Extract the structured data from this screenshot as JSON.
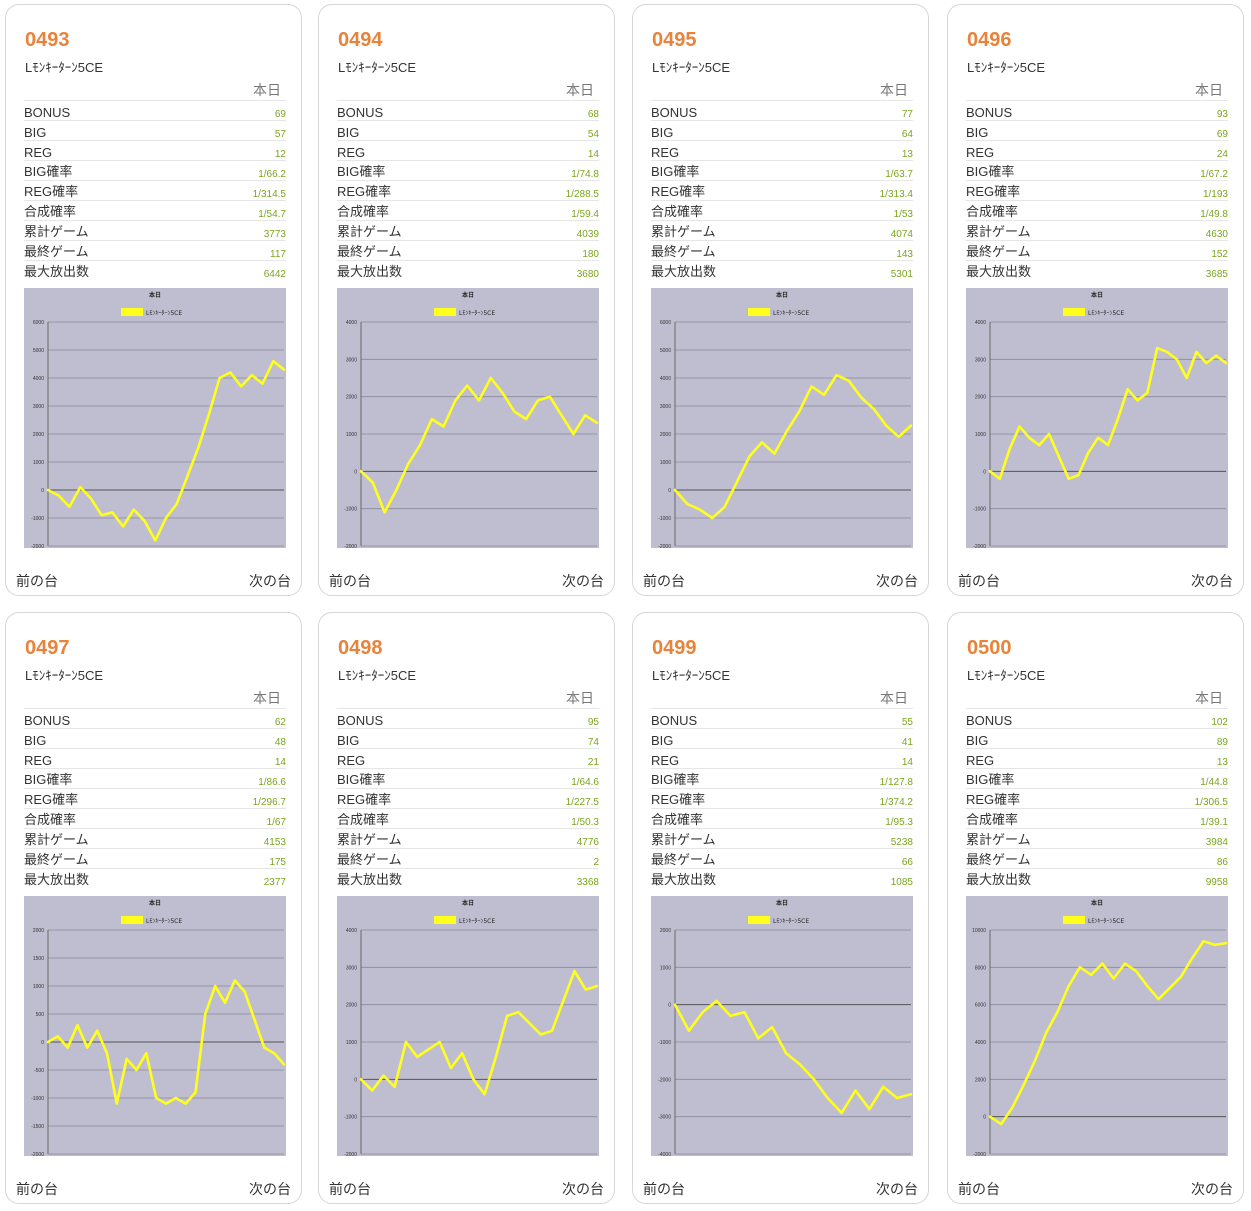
{
  "labels": {
    "today": "本日",
    "prev": "前の台",
    "next": "次の台",
    "rows": [
      "BONUS",
      "BIG",
      "REG",
      "BIG確率",
      "REG確率",
      "合成確率",
      "累計ゲーム",
      "最終ゲーム",
      "最大放出数"
    ]
  },
  "colors": {
    "number": "#e8833a",
    "value": "#7aa51e",
    "plot_bg": "#bfbdd0",
    "line": "#ffff1e"
  },
  "machines": [
    {
      "number": "0493",
      "model": "Lﾓﾝｷｰﾀｰﾝ5CE",
      "stats": [
        "69",
        "57",
        "12",
        "1/66.2",
        "1/314.5",
        "1/54.7",
        "3773",
        "117",
        "6442"
      ]
    },
    {
      "number": "0494",
      "model": "Lﾓﾝｷｰﾀｰﾝ5CE",
      "stats": [
        "68",
        "54",
        "14",
        "1/74.8",
        "1/288.5",
        "1/59.4",
        "4039",
        "180",
        "3680"
      ]
    },
    {
      "number": "0495",
      "model": "Lﾓﾝｷｰﾀｰﾝ5CE",
      "stats": [
        "77",
        "64",
        "13",
        "1/63.7",
        "1/313.4",
        "1/53",
        "4074",
        "143",
        "5301"
      ]
    },
    {
      "number": "0496",
      "model": "Lﾓﾝｷｰﾀｰﾝ5CE",
      "stats": [
        "93",
        "69",
        "24",
        "1/67.2",
        "1/193",
        "1/49.8",
        "4630",
        "152",
        "3685"
      ]
    },
    {
      "number": "0497",
      "model": "Lﾓﾝｷｰﾀｰﾝ5CE",
      "stats": [
        "62",
        "48",
        "14",
        "1/86.6",
        "1/296.7",
        "1/67",
        "4153",
        "175",
        "2377"
      ]
    },
    {
      "number": "0498",
      "model": "Lﾓﾝｷｰﾀｰﾝ5CE",
      "stats": [
        "95",
        "74",
        "21",
        "1/64.6",
        "1/227.5",
        "1/50.3",
        "4776",
        "2",
        "3368"
      ]
    },
    {
      "number": "0499",
      "model": "Lﾓﾝｷｰﾀｰﾝ5CE",
      "stats": [
        "55",
        "41",
        "14",
        "1/127.8",
        "1/374.2",
        "1/95.3",
        "5238",
        "66",
        "1085"
      ]
    },
    {
      "number": "0500",
      "model": "Lﾓﾝｷｰﾀｰﾝ5CE",
      "stats": [
        "102",
        "89",
        "13",
        "1/44.8",
        "1/306.5",
        "1/39.1",
        "3984",
        "86",
        "9958"
      ]
    }
  ],
  "chart_data": [
    {
      "type": "line",
      "title": "本日",
      "series": [
        {
          "name": "Lﾓﾝｷｰﾀｰﾝ5CE",
          "values": [
            0,
            -200,
            -600,
            100,
            -300,
            -900,
            -800,
            -1300,
            -700,
            -1100,
            -1800,
            -1000,
            -500,
            500,
            1500,
            2700,
            4000,
            4200,
            3700,
            4100,
            3800,
            4600,
            4300
          ]
        }
      ],
      "ylim": [
        -2000,
        6000
      ],
      "yticks": [
        -2000,
        -1000,
        0,
        1000,
        2000,
        3000,
        4000,
        5000,
        6000
      ],
      "grid": true
    },
    {
      "type": "line",
      "title": "本日",
      "series": [
        {
          "name": "Lﾓﾝｷｰﾀｰﾝ5CE",
          "values": [
            0,
            -300,
            -1100,
            -500,
            200,
            700,
            1400,
            1200,
            1900,
            2300,
            1900,
            2500,
            2100,
            1600,
            1400,
            1900,
            2000,
            1500,
            1000,
            1500,
            1300
          ]
        }
      ],
      "ylim": [
        -2000,
        4000
      ],
      "yticks": [
        -2000,
        -1000,
        0,
        1000,
        2000,
        3000,
        4000
      ],
      "grid": true
    },
    {
      "type": "line",
      "title": "本日",
      "series": [
        {
          "name": "Lﾓﾝｷｰﾀｰﾝ5CE",
          "values": [
            0,
            -500,
            -700,
            -1000,
            -600,
            300,
            1200,
            1700,
            1300,
            2100,
            2800,
            3700,
            3400,
            4100,
            3900,
            3300,
            2900,
            2300,
            1900,
            2300
          ]
        }
      ],
      "ylim": [
        -2000,
        6000
      ],
      "yticks": [
        -2000,
        -1000,
        0,
        1000,
        2000,
        3000,
        4000,
        5000,
        6000
      ],
      "grid": true
    },
    {
      "type": "line",
      "title": "本日",
      "series": [
        {
          "name": "Lﾓﾝｷｰﾀｰﾝ5CE",
          "values": [
            0,
            -200,
            600,
            1200,
            900,
            700,
            1000,
            400,
            -200,
            -100,
            500,
            900,
            700,
            1400,
            2200,
            1900,
            2100,
            3300,
            3200,
            3000,
            2500,
            3200,
            2900,
            3100,
            2900
          ]
        }
      ],
      "ylim": [
        -2000,
        4000
      ],
      "yticks": [
        -2000,
        -1000,
        0,
        1000,
        2000,
        3000,
        4000
      ],
      "grid": true
    },
    {
      "type": "line",
      "title": "本日",
      "series": [
        {
          "name": "Lﾓﾝｷｰﾀｰﾝ5CE",
          "values": [
            0,
            100,
            -100,
            300,
            -100,
            200,
            -200,
            -1100,
            -300,
            -500,
            -200,
            -1000,
            -1100,
            -1000,
            -1100,
            -900,
            500,
            1000,
            700,
            1100,
            900,
            400,
            -100,
            -200,
            -400
          ]
        }
      ],
      "ylim": [
        -2000,
        2000
      ],
      "yticks": [
        -2000,
        -1500,
        -1000,
        -500,
        0,
        500,
        1000,
        1500,
        2000
      ],
      "grid": true
    },
    {
      "type": "line",
      "title": "本日",
      "series": [
        {
          "name": "Lﾓﾝｷｰﾀｰﾝ5CE",
          "values": [
            0,
            -300,
            100,
            -200,
            1000,
            600,
            800,
            1000,
            300,
            700,
            0,
            -400,
            600,
            1700,
            1800,
            1500,
            1200,
            1300,
            2100,
            2900,
            2400,
            2500
          ]
        }
      ],
      "ylim": [
        -2000,
        4000
      ],
      "yticks": [
        -2000,
        -1000,
        0,
        1000,
        2000,
        3000,
        4000
      ],
      "grid": true
    },
    {
      "type": "line",
      "title": "本日",
      "series": [
        {
          "name": "Lﾓﾝｷｰﾀｰﾝ5CE",
          "values": [
            0,
            -700,
            -200,
            100,
            -300,
            -200,
            -900,
            -600,
            -1300,
            -1600,
            -2000,
            -2500,
            -2900,
            -2300,
            -2800,
            -2200,
            -2500,
            -2400
          ]
        }
      ],
      "ylim": [
        -4000,
        2000
      ],
      "yticks": [
        -4000,
        -3000,
        -2000,
        -1000,
        0,
        1000,
        2000
      ],
      "grid": true
    },
    {
      "type": "line",
      "title": "本日",
      "series": [
        {
          "name": "Lﾓﾝｷｰﾀｰﾝ5CE",
          "values": [
            0,
            -400,
            500,
            1700,
            3000,
            4500,
            5600,
            7000,
            8000,
            7600,
            8200,
            7400,
            8200,
            7800,
            7000,
            6300,
            6900,
            7500,
            8500,
            9400,
            9200,
            9300
          ]
        }
      ],
      "ylim": [
        -2000,
        10000
      ],
      "yticks": [
        -2000,
        0,
        2000,
        4000,
        6000,
        8000,
        10000
      ],
      "grid": true
    }
  ]
}
